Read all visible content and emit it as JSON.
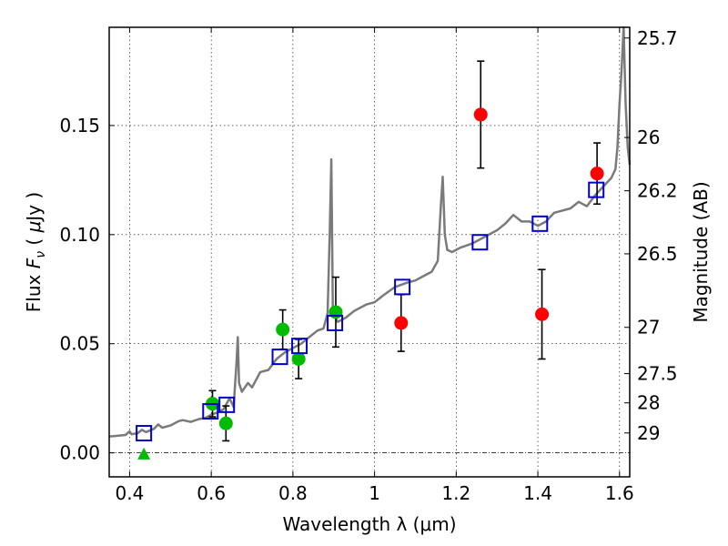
{
  "chart_data": {
    "type": "scatter",
    "xlabel": "Wavelength  λ (μm)",
    "ylabel": "Flux  F_ν  ( μJy )",
    "ylabel_right": "Magnitude (AB)",
    "xlim": [
      0.35,
      1.625
    ],
    "ylim": [
      -0.011,
      0.195
    ],
    "xticks": [
      {
        "value": 0.4,
        "label": "0.4"
      },
      {
        "value": 0.6,
        "label": "0.6"
      },
      {
        "value": 0.8,
        "label": "0.8"
      },
      {
        "value": 1.0,
        "label": "1"
      },
      {
        "value": 1.2,
        "label": "1.2"
      },
      {
        "value": 1.4,
        "label": "1.4"
      },
      {
        "value": 1.6,
        "label": "1.6"
      }
    ],
    "yticks": [
      {
        "value": 0.0,
        "label": "0.00"
      },
      {
        "value": 0.05,
        "label": "0.05"
      },
      {
        "value": 0.1,
        "label": "0.10"
      },
      {
        "value": 0.15,
        "label": "0.15"
      }
    ],
    "magnitude_ticks": [
      {
        "flux": 0.1901,
        "label": "25.7"
      },
      {
        "flux": 0.1445,
        "label": "26"
      },
      {
        "flux": 0.1201,
        "label": "26.2"
      },
      {
        "flux": 0.0912,
        "label": "26.5"
      },
      {
        "flux": 0.0575,
        "label": "27"
      },
      {
        "flux": 0.0363,
        "label": "27.5"
      },
      {
        "flux": 0.0229,
        "label": "28"
      },
      {
        "flux": 0.0091,
        "label": "29"
      }
    ],
    "grid": true,
    "zero_line": true,
    "colors": {
      "model": "#7a7a7a",
      "optical": "#00bb00",
      "nir": "#ff0000",
      "model_photometry": "#0000cc",
      "errorbar": "#000000"
    },
    "series": [
      {
        "marker": "line",
        "color": "#7a7a7a",
        "points": [
          [
            0.35,
            0.0075
          ],
          [
            0.37,
            0.0078
          ],
          [
            0.39,
            0.0082
          ],
          [
            0.4,
            0.0098
          ],
          [
            0.405,
            0.0085
          ],
          [
            0.42,
            0.009
          ],
          [
            0.43,
            0.0105
          ],
          [
            0.44,
            0.0095
          ],
          [
            0.46,
            0.011
          ],
          [
            0.47,
            0.013
          ],
          [
            0.48,
            0.0115
          ],
          [
            0.5,
            0.0125
          ],
          [
            0.52,
            0.0145
          ],
          [
            0.53,
            0.015
          ],
          [
            0.55,
            0.0142
          ],
          [
            0.57,
            0.0155
          ],
          [
            0.585,
            0.016
          ],
          [
            0.6,
            0.0175
          ],
          [
            0.615,
            0.0185
          ],
          [
            0.63,
            0.02
          ],
          [
            0.645,
            0.025
          ],
          [
            0.655,
            0.021
          ],
          [
            0.658,
            0.0305
          ],
          [
            0.662,
            0.042
          ],
          [
            0.665,
            0.053
          ],
          [
            0.668,
            0.032
          ],
          [
            0.675,
            0.028
          ],
          [
            0.69,
            0.032
          ],
          [
            0.7,
            0.03
          ],
          [
            0.72,
            0.037
          ],
          [
            0.74,
            0.038
          ],
          [
            0.76,
            0.043
          ],
          [
            0.78,
            0.046
          ],
          [
            0.8,
            0.048
          ],
          [
            0.82,
            0.05
          ],
          [
            0.84,
            0.053
          ],
          [
            0.86,
            0.056
          ],
          [
            0.875,
            0.057
          ],
          [
            0.885,
            0.064
          ],
          [
            0.89,
            0.1
          ],
          [
            0.894,
            0.1345
          ],
          [
            0.898,
            0.064
          ],
          [
            0.91,
            0.06
          ],
          [
            0.93,
            0.062
          ],
          [
            0.95,
            0.065
          ],
          [
            0.98,
            0.068
          ],
          [
            1.0,
            0.069
          ],
          [
            1.02,
            0.072
          ],
          [
            1.05,
            0.076
          ],
          [
            1.08,
            0.078
          ],
          [
            1.1,
            0.079
          ],
          [
            1.12,
            0.081
          ],
          [
            1.14,
            0.083
          ],
          [
            1.155,
            0.088
          ],
          [
            1.162,
            0.112
          ],
          [
            1.167,
            0.1265
          ],
          [
            1.172,
            0.1
          ],
          [
            1.178,
            0.093
          ],
          [
            1.19,
            0.092
          ],
          [
            1.21,
            0.094
          ],
          [
            1.24,
            0.096
          ],
          [
            1.26,
            0.098
          ],
          [
            1.28,
            0.1
          ],
          [
            1.3,
            0.102
          ],
          [
            1.32,
            0.105
          ],
          [
            1.33,
            0.107
          ],
          [
            1.34,
            0.109
          ],
          [
            1.36,
            0.106
          ],
          [
            1.38,
            0.106
          ],
          [
            1.4,
            0.104
          ],
          [
            1.42,
            0.106
          ],
          [
            1.44,
            0.11
          ],
          [
            1.46,
            0.111
          ],
          [
            1.48,
            0.112
          ],
          [
            1.5,
            0.115
          ],
          [
            1.52,
            0.113
          ],
          [
            1.54,
            0.118
          ],
          [
            1.56,
            0.122
          ],
          [
            1.58,
            0.126
          ],
          [
            1.59,
            0.13
          ],
          [
            1.595,
            0.14
          ],
          [
            1.6,
            0.16
          ],
          [
            1.605,
            0.175
          ],
          [
            1.61,
            0.195
          ],
          [
            1.615,
            0.16
          ],
          [
            1.62,
            0.14
          ],
          [
            1.625,
            0.132
          ]
        ]
      },
      {
        "marker": "circle",
        "color": "#00bb00",
        "points": [
          {
            "x": 0.603,
            "y": 0.0225,
            "err": 0.006
          },
          {
            "x": 0.636,
            "y": 0.0135,
            "err": 0.008
          },
          {
            "x": 0.775,
            "y": 0.0565,
            "err": 0.009
          },
          {
            "x": 0.814,
            "y": 0.043,
            "err": 0.009
          },
          {
            "x": 0.905,
            "y": 0.0645,
            "err": 0.016
          }
        ]
      },
      {
        "marker": "triangle",
        "color": "#00bb00",
        "points": [
          {
            "x": 0.435,
            "y": -0.0005
          }
        ]
      },
      {
        "marker": "circle",
        "color": "#ff0000",
        "points": [
          {
            "x": 1.065,
            "y": 0.0595,
            "err": 0.013
          },
          {
            "x": 1.26,
            "y": 0.155,
            "err": 0.0245
          },
          {
            "x": 1.41,
            "y": 0.0635,
            "err": 0.0205
          },
          {
            "x": 1.545,
            "y": 0.128,
            "err": 0.014
          }
        ]
      },
      {
        "marker": "square",
        "color": "#0000cc",
        "points": [
          {
            "x": 0.435,
            "y": 0.009
          },
          {
            "x": 0.598,
            "y": 0.019
          },
          {
            "x": 0.638,
            "y": 0.022
          },
          {
            "x": 0.768,
            "y": 0.044
          },
          {
            "x": 0.816,
            "y": 0.049
          },
          {
            "x": 0.903,
            "y": 0.0595
          },
          {
            "x": 1.068,
            "y": 0.076
          },
          {
            "x": 1.258,
            "y": 0.0965
          },
          {
            "x": 1.405,
            "y": 0.105
          },
          {
            "x": 1.543,
            "y": 0.1205
          }
        ]
      }
    ]
  }
}
